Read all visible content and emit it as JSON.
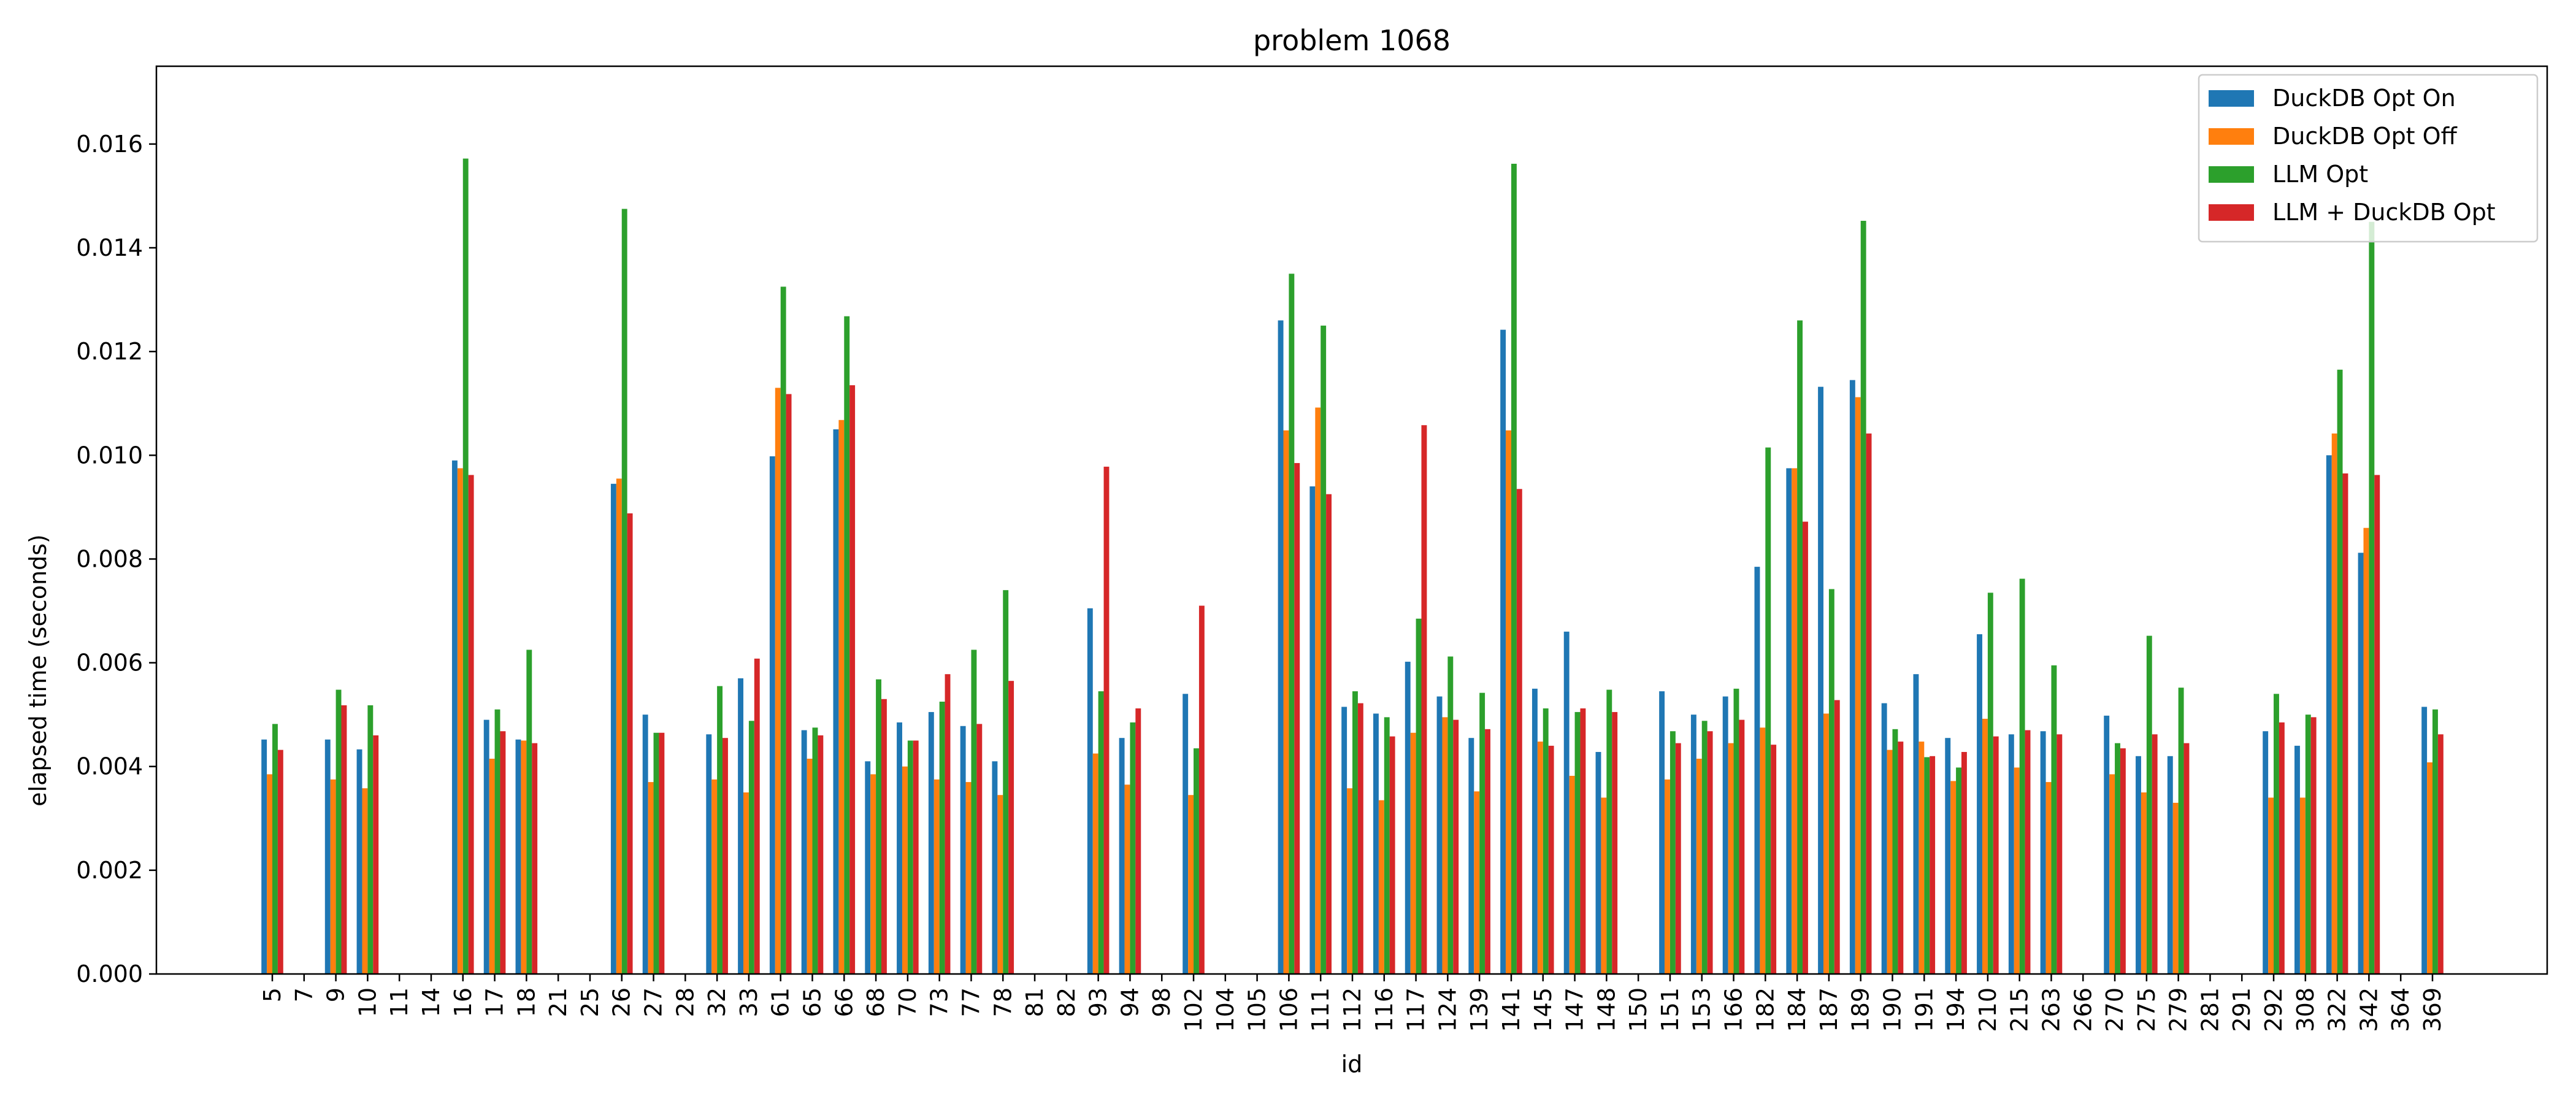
{
  "chart_data": {
    "type": "bar",
    "title": "problem 1068",
    "xlabel": "id",
    "ylabel": "elapsed time (seconds)",
    "ylim": [
      0,
      0.0175
    ],
    "yticks": [
      "0.000",
      "0.002",
      "0.004",
      "0.006",
      "0.008",
      "0.010",
      "0.012",
      "0.014",
      "0.016"
    ],
    "legend_position": "top-right",
    "grid": false,
    "categories": [
      "5",
      "7",
      "9",
      "10",
      "11",
      "14",
      "16",
      "17",
      "18",
      "21",
      "25",
      "26",
      "27",
      "28",
      "32",
      "33",
      "61",
      "65",
      "66",
      "68",
      "70",
      "73",
      "77",
      "78",
      "81",
      "82",
      "93",
      "94",
      "98",
      "102",
      "104",
      "105",
      "106",
      "111",
      "112",
      "116",
      "117",
      "124",
      "139",
      "141",
      "145",
      "147",
      "148",
      "150",
      "151",
      "153",
      "166",
      "182",
      "184",
      "187",
      "189",
      "190",
      "191",
      "194",
      "210",
      "215",
      "263",
      "266",
      "270",
      "275",
      "279",
      "281",
      "291",
      "292",
      "308",
      "322",
      "342",
      "364",
      "369"
    ],
    "series": [
      {
        "name": "DuckDB Opt On",
        "color": "#1f77b4",
        "values": [
          0.00452,
          0,
          0.00452,
          0.00433,
          0,
          0,
          0.0099,
          0.0049,
          0.00452,
          0,
          0,
          0.00945,
          0.005,
          0,
          0.00462,
          0.0057,
          0.00998,
          0.0047,
          0.0105,
          0.0041,
          0.00485,
          0.00505,
          0.00478,
          0.0041,
          0,
          0,
          0.00705,
          0.00455,
          0,
          0.0054,
          0,
          0,
          0.0126,
          0.0094,
          0.00515,
          0.00502,
          0.00602,
          0.00535,
          0.00455,
          0.01242,
          0.0055,
          0.0066,
          0.00428,
          0,
          0.00545,
          0.005,
          0.00535,
          0.00785,
          0.00975,
          0.01132,
          0.01145,
          0.00522,
          0.00578,
          0.00455,
          0.00655,
          0.00462,
          0.00468,
          0,
          0.00498,
          0.0042,
          0.0042,
          0,
          0,
          0.00468,
          0.0044,
          0.01,
          0.00812,
          0,
          0.00515
        ]
      },
      {
        "name": "DuckDB Opt Off",
        "color": "#ff7f0e",
        "values": [
          0.00385,
          0,
          0.00375,
          0.00358,
          0,
          0,
          0.00975,
          0.00415,
          0.0045,
          0,
          0,
          0.00955,
          0.0037,
          0,
          0.00375,
          0.0035,
          0.0113,
          0.00415,
          0.01068,
          0.00385,
          0.004,
          0.00375,
          0.0037,
          0.00345,
          0,
          0,
          0.00425,
          0.00365,
          0,
          0.00345,
          0,
          0,
          0.01048,
          0.01092,
          0.00358,
          0.00335,
          0.00465,
          0.00495,
          0.00352,
          0.01048,
          0.00448,
          0.00382,
          0.0034,
          0,
          0.00375,
          0.00415,
          0.00445,
          0.00475,
          0.00975,
          0.00502,
          0.01112,
          0.00432,
          0.00448,
          0.00372,
          0.00492,
          0.00398,
          0.0037,
          0,
          0.00385,
          0.0035,
          0.0033,
          0,
          0,
          0.0034,
          0.0034,
          0.01042,
          0.0086,
          0,
          0.00408
        ]
      },
      {
        "name": "LLM Opt",
        "color": "#2ca02c",
        "values": [
          0.00482,
          0,
          0.00548,
          0.00518,
          0,
          0,
          0.01572,
          0.0051,
          0.00625,
          0,
          0,
          0.01475,
          0.00465,
          0,
          0.00555,
          0.00488,
          0.01325,
          0.00475,
          0.01268,
          0.00568,
          0.0045,
          0.00525,
          0.00625,
          0.0074,
          0,
          0,
          0.00545,
          0.00485,
          0,
          0.00435,
          0,
          0,
          0.0135,
          0.0125,
          0.00545,
          0.00495,
          0.00685,
          0.00612,
          0.00542,
          0.01562,
          0.00512,
          0.00505,
          0.00548,
          0,
          0.00468,
          0.00488,
          0.0055,
          0.01015,
          0.0126,
          0.00742,
          0.01452,
          0.00472,
          0.00418,
          0.00398,
          0.00735,
          0.00762,
          0.00595,
          0,
          0.00445,
          0.00652,
          0.00552,
          0,
          0,
          0.0054,
          0.005,
          0.01165,
          0.0145,
          0,
          0.0051
        ]
      },
      {
        "name": "LLM + DuckDB Opt",
        "color": "#d62728",
        "values": [
          0.00432,
          0,
          0.00518,
          0.0046,
          0,
          0,
          0.00962,
          0.00468,
          0.00445,
          0,
          0,
          0.00888,
          0.00465,
          0,
          0.00455,
          0.00608,
          0.01118,
          0.0046,
          0.01135,
          0.0053,
          0.0045,
          0.00578,
          0.00482,
          0.00565,
          0,
          0,
          0.00978,
          0.00512,
          0,
          0.0071,
          0,
          0,
          0.00985,
          0.00925,
          0.00522,
          0.00458,
          0.01058,
          0.0049,
          0.00472,
          0.00935,
          0.0044,
          0.00512,
          0.00505,
          0,
          0.00445,
          0.00468,
          0.0049,
          0.00442,
          0.00872,
          0.00528,
          0.01042,
          0.00448,
          0.0042,
          0.00428,
          0.00458,
          0.0047,
          0.00462,
          0,
          0.00435,
          0.00462,
          0.00445,
          0,
          0,
          0.00485,
          0.00495,
          0.00965,
          0.00962,
          0,
          0.00462
        ]
      }
    ]
  }
}
